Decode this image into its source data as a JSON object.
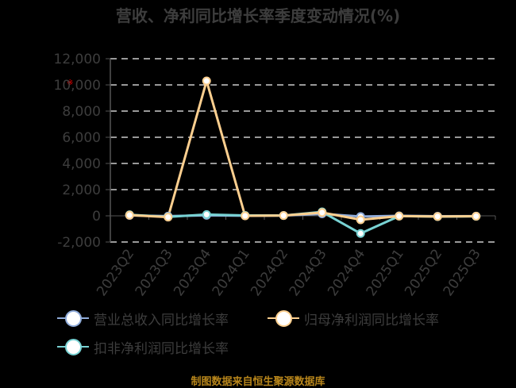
{
  "title": "营收、净利同比增长率季度变动情况(%)",
  "source": "制图数据来自恒生聚源数据库",
  "watermark": "※",
  "colors": {
    "background": "#000000",
    "text": "#3d3d3d",
    "grid": "#cccccc",
    "revenue": "#8fabd9",
    "net_profit": "#fdcf8f",
    "deducted_net_profit": "#78d2d3",
    "source": "#b8861b"
  },
  "legend": [
    {
      "name": "营业总收入同比增长率",
      "color": "#8fabd9"
    },
    {
      "name": "归母净利润同比增长率",
      "color": "#fdcf8f"
    },
    {
      "name": "扣非净利润同比增长率",
      "color": "#78d2d3"
    }
  ],
  "chart_data": {
    "type": "line",
    "title": "营收、净利同比增长率季度变动情况(%)",
    "xlabel": "",
    "ylabel": "",
    "categories": [
      "2023Q2",
      "2023Q3",
      "2023Q4",
      "2024Q1",
      "2024Q2",
      "2024Q3",
      "2024Q4",
      "2025Q1",
      "2025Q2",
      "2025Q3"
    ],
    "yticks": [
      -2000,
      0,
      2000,
      4000,
      6000,
      8000,
      10000,
      12000
    ],
    "ytick_labels": [
      "-2,000",
      "0",
      "2,000",
      "4,000",
      "6,000",
      "8,000",
      "10,000",
      "12,000"
    ],
    "ylim": [
      -2000,
      12000
    ],
    "grid": true,
    "legend_position": "bottom",
    "series": [
      {
        "name": "营业总收入同比增长率",
        "color": "#8fabd9",
        "values": [
          30,
          -20,
          40,
          10,
          20,
          150,
          -50,
          0,
          -30,
          -20
        ]
      },
      {
        "name": "归母净利润同比增长率",
        "color": "#fdcf8f",
        "values": [
          50,
          -100,
          10300,
          0,
          20,
          250,
          -300,
          -20,
          -50,
          -30
        ]
      },
      {
        "name": "扣非净利润同比增长率",
        "color": "#78d2d3",
        "values": [
          80,
          -80,
          100,
          30,
          20,
          300,
          -1350,
          -20,
          -60,
          -40
        ]
      }
    ]
  }
}
